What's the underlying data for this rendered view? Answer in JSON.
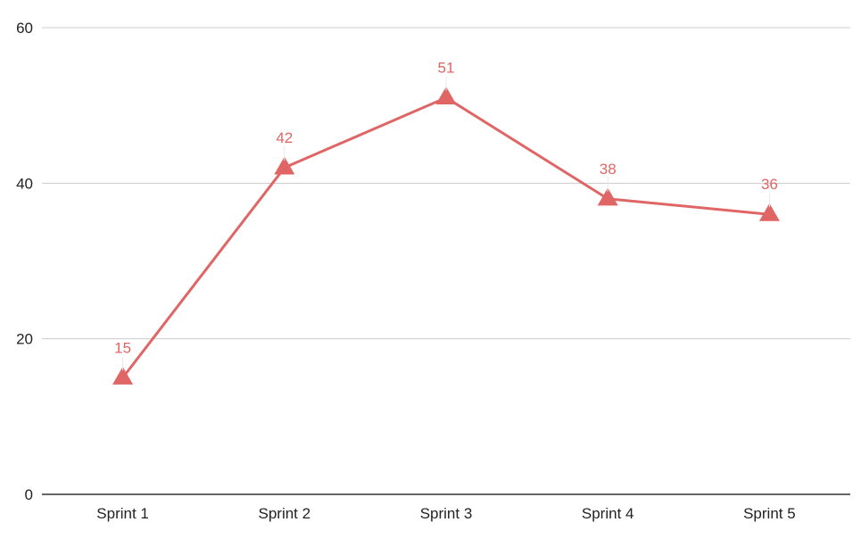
{
  "chart_data": {
    "type": "line",
    "title": "",
    "xlabel": "",
    "ylabel": "",
    "categories": [
      "Sprint 1",
      "Sprint 2",
      "Sprint 3",
      "Sprint 4",
      "Sprint 5"
    ],
    "series": [
      {
        "values": [
          15,
          42,
          51,
          38,
          36
        ],
        "color": "#e06666",
        "marker": "triangle"
      }
    ],
    "ylim": [
      0,
      60
    ],
    "yticks": [
      0,
      20,
      40,
      60
    ],
    "grid": true,
    "legend": "none",
    "data_labels": true
  }
}
